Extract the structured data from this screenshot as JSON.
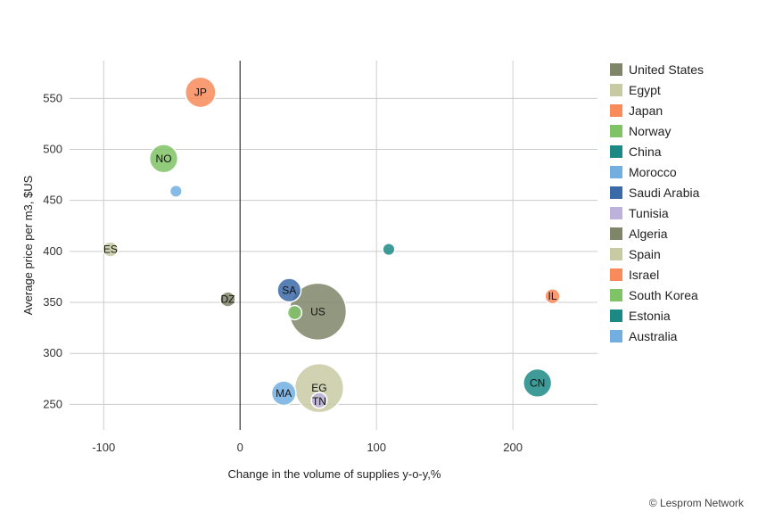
{
  "credit": "© Lesprom Network",
  "chart_data": {
    "type": "scatter",
    "subtype": "bubble",
    "title": "",
    "xlabel": "Change in the volume of supplies y-o-y,%",
    "ylabel": "Average price per m3, $US",
    "xlim": [
      -125,
      262
    ],
    "ylim": [
      225,
      587
    ],
    "x_ticks": [
      -100,
      0,
      100,
      200
    ],
    "y_ticks": [
      250,
      300,
      350,
      400,
      450,
      500,
      550
    ],
    "grid": true,
    "legend": "right",
    "series": [
      {
        "name": "United States",
        "code": "US",
        "color": "#7f8569",
        "x": 57,
        "y": 341,
        "size": 100
      },
      {
        "name": "Egypt",
        "code": "EG",
        "color": "#c8caa3",
        "x": 58,
        "y": 266,
        "size": 70
      },
      {
        "name": "Japan",
        "code": "JP",
        "color": "#f98b5a",
        "x": -29,
        "y": 556,
        "size": 22
      },
      {
        "name": "Norway",
        "code": "NO",
        "color": "#80c266",
        "x": -56,
        "y": 491,
        "size": 18
      },
      {
        "name": "China",
        "code": "CN",
        "color": "#1c8985",
        "x": 218,
        "y": 271,
        "size": 18
      },
      {
        "name": "Morocco",
        "code": "MA",
        "color": "#72aee0",
        "x": 32,
        "y": 261,
        "size": 12
      },
      {
        "name": "Saudi Arabia",
        "code": "SA",
        "color": "#3b6aa8",
        "x": 36,
        "y": 362,
        "size": 11
      },
      {
        "name": "Tunisia",
        "code": "TN",
        "color": "#bdb2dc",
        "x": 58,
        "y": 254,
        "size": 3
      },
      {
        "name": "Algeria",
        "code": "DZ",
        "color": "#7f8569",
        "x": -9,
        "y": 353,
        "size": 2.5
      },
      {
        "name": "Spain",
        "code": "ES",
        "color": "#c8caa3",
        "x": -95,
        "y": 402,
        "size": 2.5
      },
      {
        "name": "Israel",
        "code": "IL",
        "color": "#f98b5a",
        "x": 229,
        "y": 356,
        "size": 2.5
      },
      {
        "name": "South Korea",
        "code": "",
        "color": "#80c266",
        "x": 40,
        "y": 340,
        "size": 2
      },
      {
        "name": "Estonia",
        "code": "",
        "color": "#1c8985",
        "x": 109,
        "y": 402,
        "size": 1
      },
      {
        "name": "Australia",
        "code": "",
        "color": "#72aee0",
        "x": -47,
        "y": 459,
        "size": 1
      }
    ]
  }
}
